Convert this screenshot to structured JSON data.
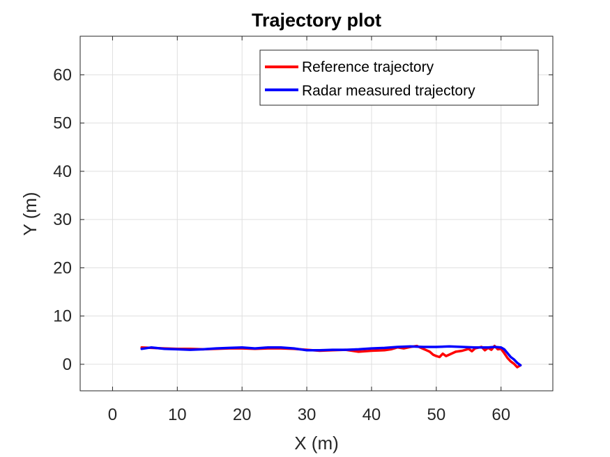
{
  "chart_data": {
    "type": "line",
    "title": "Trajectory plot",
    "xlabel": "X (m)",
    "ylabel": "Y (m)",
    "xlim": [
      -5,
      68
    ],
    "ylim": [
      -5.5,
      68
    ],
    "xticks": [
      0,
      10,
      20,
      30,
      40,
      50,
      60
    ],
    "yticks": [
      0,
      10,
      20,
      30,
      40,
      50,
      60
    ],
    "grid": true,
    "legend_position": "top-right",
    "series": [
      {
        "name": "Reference trajectory",
        "color": "#ff0000",
        "x": [
          4.5,
          6,
          8,
          10,
          12,
          14,
          16,
          18,
          20,
          22,
          24,
          26,
          28,
          30,
          32,
          34,
          36,
          38,
          40,
          42,
          43,
          44,
          45,
          46,
          47,
          48,
          48.5,
          49,
          49.5,
          50,
          50.5,
          51,
          51.5,
          52,
          53,
          54,
          55,
          55.5,
          56,
          57,
          57.5,
          58,
          58.5,
          59,
          59.5,
          60,
          60.5,
          61,
          61.5,
          62,
          62.5,
          63
        ],
        "y": [
          3.5,
          3.4,
          3.3,
          3.2,
          3.2,
          3.1,
          3.2,
          3.3,
          3.3,
          3.2,
          3.3,
          3.3,
          3.2,
          3.0,
          2.8,
          2.9,
          3.0,
          2.6,
          2.8,
          2.9,
          3.1,
          3.5,
          3.3,
          3.6,
          3.8,
          3.2,
          2.9,
          2.6,
          2.0,
          1.7,
          1.5,
          2.2,
          1.7,
          2.0,
          2.6,
          2.8,
          3.2,
          2.7,
          3.3,
          3.6,
          2.9,
          3.4,
          3.0,
          3.8,
          3.1,
          3.2,
          2.3,
          1.3,
          0.6,
          0.1,
          -0.6,
          -0.2
        ]
      },
      {
        "name": "Radar measured trajectory",
        "color": "#0000ff",
        "x": [
          4.5,
          6,
          8,
          10,
          12,
          14,
          16,
          18,
          20,
          22,
          24,
          26,
          28,
          30,
          32,
          34,
          36,
          38,
          40,
          42,
          44,
          46,
          48,
          50,
          52,
          54,
          56,
          58,
          59,
          60,
          60.5,
          61,
          61.5,
          62,
          62.5,
          63
        ],
        "y": [
          3.2,
          3.5,
          3.2,
          3.1,
          3.0,
          3.1,
          3.3,
          3.4,
          3.5,
          3.3,
          3.5,
          3.5,
          3.3,
          2.9,
          2.9,
          3.0,
          3.0,
          3.1,
          3.3,
          3.4,
          3.6,
          3.7,
          3.6,
          3.6,
          3.7,
          3.6,
          3.5,
          3.5,
          3.6,
          3.5,
          3.1,
          2.3,
          1.5,
          1.0,
          0.3,
          -0.2
        ]
      }
    ]
  }
}
